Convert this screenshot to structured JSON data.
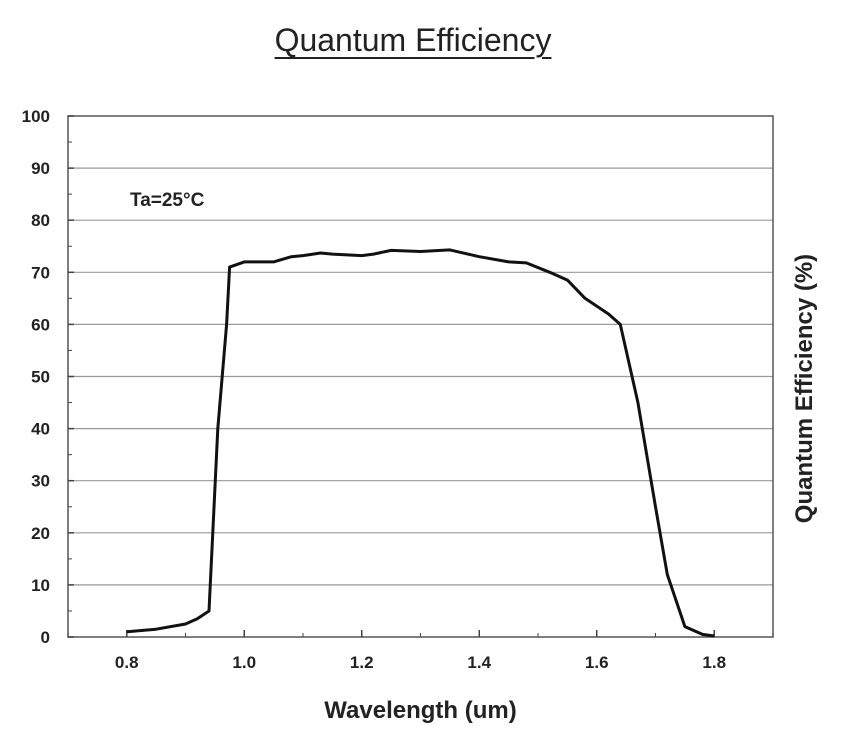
{
  "chart_data": {
    "type": "line",
    "title": "Quantum Efficiency",
    "xlabel": "Wavelength (um)",
    "ylabel": "Quantum Efficiency (%)",
    "ylabel_position": "right",
    "annotation": "Ta=25°C",
    "xlim": [
      0.7,
      1.9
    ],
    "ylim": [
      0,
      100
    ],
    "x_ticks": [
      "0.8",
      "1.0",
      "1.2",
      "1.4",
      "1.6",
      "1.8"
    ],
    "y_ticks": [
      "0",
      "10",
      "20",
      "30",
      "40",
      "50",
      "60",
      "70",
      "80",
      "90",
      "100"
    ],
    "grid": "horizontal",
    "series": [
      {
        "color": "#111111",
        "x": [
          0.8,
          0.85,
          0.9,
          0.92,
          0.94,
          0.955,
          0.97,
          0.975,
          1.0,
          1.05,
          1.08,
          1.1,
          1.13,
          1.15,
          1.2,
          1.22,
          1.25,
          1.3,
          1.35,
          1.4,
          1.45,
          1.48,
          1.52,
          1.55,
          1.58,
          1.62,
          1.64,
          1.67,
          1.7,
          1.72,
          1.75,
          1.78,
          1.8
        ],
        "y": [
          1.0,
          1.5,
          2.5,
          3.5,
          5.0,
          40.0,
          60.0,
          71.0,
          72.0,
          72.0,
          73.0,
          73.2,
          73.7,
          73.5,
          73.2,
          73.5,
          74.2,
          74.0,
          74.3,
          73.0,
          72.0,
          71.8,
          70.0,
          68.5,
          65.0,
          62.0,
          60.0,
          45.0,
          25.0,
          12.0,
          2.0,
          0.5,
          0.2
        ]
      }
    ]
  }
}
